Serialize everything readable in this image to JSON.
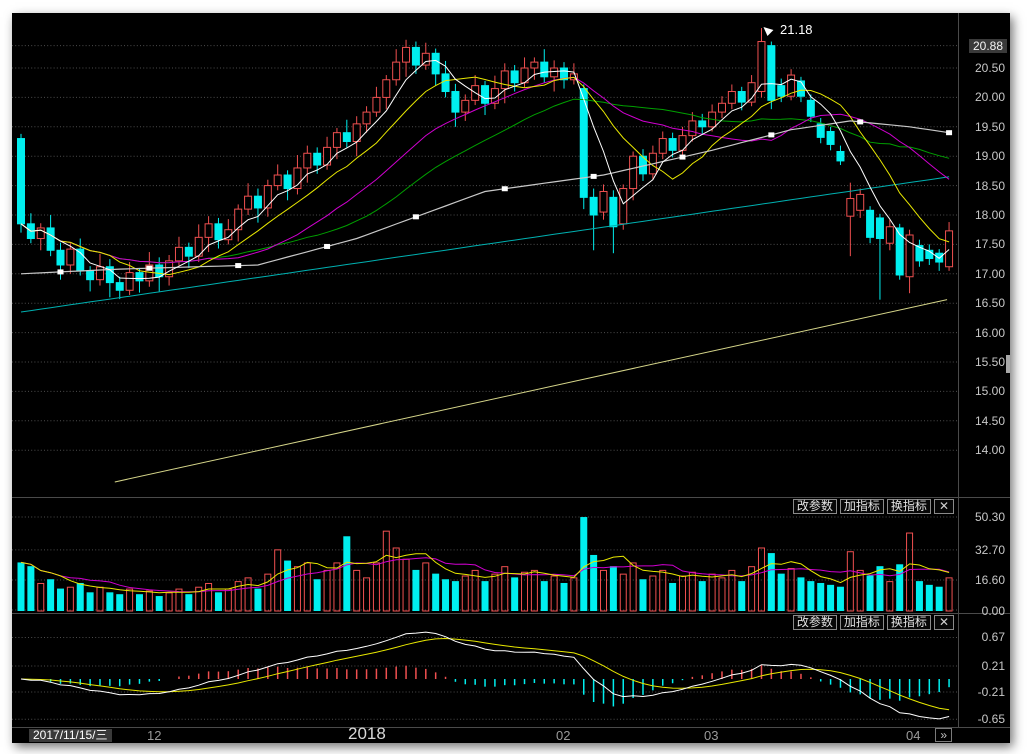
{
  "toolbar": {
    "change_params": "改参数",
    "add_indicator": "加指标",
    "switch_indicator": "换指标",
    "close": "✕"
  },
  "xaxis": {
    "labels": [
      {
        "text": "2017/11/15/三",
        "style": "box"
      },
      {
        "text": "12",
        "style": "plain"
      },
      {
        "text": "2018",
        "style": "big"
      },
      {
        "text": "02",
        "style": "plain"
      },
      {
        "text": "03",
        "style": "plain"
      },
      {
        "text": "04",
        "style": "plain"
      }
    ],
    "more_label": "»"
  },
  "main_panel": {
    "yticks": [
      {
        "label": "20.88",
        "price": 20.88,
        "boxed": true
      },
      {
        "label": "20.50",
        "price": 20.5
      },
      {
        "label": "20.00",
        "price": 20.0
      },
      {
        "label": "19.50",
        "price": 19.5
      },
      {
        "label": "19.00",
        "price": 19.0
      },
      {
        "label": "18.50",
        "price": 18.5
      },
      {
        "label": "18.00",
        "price": 18.0
      },
      {
        "label": "17.50",
        "price": 17.5
      },
      {
        "label": "17.00",
        "price": 17.0
      },
      {
        "label": "16.50",
        "price": 16.5
      },
      {
        "label": "16.00",
        "price": 16.0
      },
      {
        "label": "15.50",
        "price": 15.5
      },
      {
        "label": "15.00",
        "price": 15.0
      },
      {
        "label": "14.50",
        "price": 14.5
      },
      {
        "label": "14.00",
        "price": 14.0
      }
    ]
  },
  "volume_panel": {
    "yticks": [
      {
        "label": "50.30",
        "value": 50.3
      },
      {
        "label": "32.70",
        "value": 32.7
      },
      {
        "label": "16.60",
        "value": 16.6
      },
      {
        "label": "0.00",
        "value": 0.0
      }
    ]
  },
  "macd_panel": {
    "yticks": [
      {
        "label": "0.67",
        "value": 0.67
      },
      {
        "label": "0.21",
        "value": 0.21
      },
      {
        "label": "-0.21",
        "value": -0.21
      },
      {
        "label": "-0.65",
        "value": -0.65
      }
    ]
  },
  "colors": {
    "background": "#000000",
    "grid": "#4d4d4d",
    "up": "#f05050",
    "down": "#00efef",
    "ma_white": "#ffffff",
    "ma_yellow": "#e8e800",
    "ma_magenta": "#cf00cf",
    "ma_green": "#00a000",
    "ma_cyan": "#00b0b0",
    "cost_line": "#c8c8c8",
    "trendline": "#d6d68a",
    "axis_text": "#c8c8c8"
  },
  "chart_data": {
    "type": "candlestick+volume+macd",
    "date_start": "2017/11/15/三",
    "main_ylim": [
      13.2,
      21.43
    ],
    "volume_ylim": [
      0,
      55
    ],
    "macd_ylim": [
      -0.85,
      0.85
    ],
    "peak_annotation": {
      "index": 75,
      "price": 21.18,
      "label": "21.18"
    },
    "trendline": {
      "i1": 9.5,
      "p1": 13.46,
      "i2": 93.8,
      "p2": 16.56
    },
    "ma_periods": {
      "white": 5,
      "yellow": 10,
      "magenta": 20,
      "green": 30
    },
    "ma60_synthetic": {
      "start": 16.35,
      "end": 18.65
    },
    "cost_line_anchors": [
      [
        0,
        17.0
      ],
      [
        10,
        17.08
      ],
      [
        24,
        17.15
      ],
      [
        34,
        17.6
      ],
      [
        47,
        18.4
      ],
      [
        59,
        18.68
      ],
      [
        70,
        19.1
      ],
      [
        78,
        19.45
      ],
      [
        84,
        19.6
      ],
      [
        90,
        19.5
      ],
      [
        94,
        19.4
      ]
    ],
    "volume_ma_periods": {
      "yellow": 5,
      "magenta": 10
    },
    "candles": [
      [
        19.3,
        19.38,
        17.7,
        17.85
      ],
      [
        17.85,
        18.03,
        17.52,
        17.6
      ],
      [
        17.6,
        17.86,
        17.4,
        17.78
      ],
      [
        17.78,
        18.0,
        17.3,
        17.4
      ],
      [
        17.4,
        17.53,
        16.9,
        17.15
      ],
      [
        17.15,
        17.52,
        17.0,
        17.42
      ],
      [
        17.42,
        17.6,
        16.97,
        17.05
      ],
      [
        17.05,
        17.13,
        16.7,
        16.9
      ],
      [
        16.9,
        17.34,
        16.8,
        17.12
      ],
      [
        17.12,
        17.25,
        16.6,
        16.85
      ],
      [
        16.85,
        16.95,
        16.57,
        16.72
      ],
      [
        16.72,
        17.2,
        16.64,
        17.02
      ],
      [
        17.02,
        17.1,
        16.68,
        16.88
      ],
      [
        16.88,
        17.37,
        16.78,
        17.15
      ],
      [
        17.15,
        17.28,
        16.7,
        16.95
      ],
      [
        16.95,
        17.32,
        16.8,
        17.22
      ],
      [
        17.22,
        17.63,
        17.14,
        17.45
      ],
      [
        17.45,
        17.53,
        17.1,
        17.3
      ],
      [
        17.3,
        17.84,
        17.2,
        17.62
      ],
      [
        17.62,
        17.98,
        17.37,
        17.85
      ],
      [
        17.85,
        17.95,
        17.43,
        17.58
      ],
      [
        17.58,
        17.93,
        17.5,
        17.75
      ],
      [
        17.75,
        18.18,
        17.55,
        18.1
      ],
      [
        18.1,
        18.54,
        18.0,
        18.32
      ],
      [
        18.32,
        18.45,
        17.87,
        18.12
      ],
      [
        18.12,
        18.6,
        17.97,
        18.5
      ],
      [
        18.5,
        18.86,
        18.42,
        18.68
      ],
      [
        18.68,
        18.76,
        18.25,
        18.45
      ],
      [
        18.45,
        19.02,
        18.35,
        18.8
      ],
      [
        18.8,
        19.18,
        18.55,
        19.05
      ],
      [
        19.05,
        19.15,
        18.7,
        18.85
      ],
      [
        18.85,
        19.33,
        18.77,
        19.15
      ],
      [
        19.15,
        19.48,
        18.95,
        19.4
      ],
      [
        19.4,
        19.62,
        19.15,
        19.25
      ],
      [
        19.25,
        19.68,
        19.0,
        19.55
      ],
      [
        19.55,
        19.85,
        19.4,
        19.75
      ],
      [
        19.75,
        20.18,
        19.67,
        20.0
      ],
      [
        20.0,
        20.38,
        19.8,
        20.3
      ],
      [
        20.3,
        20.82,
        20.2,
        20.6
      ],
      [
        20.6,
        20.98,
        20.35,
        20.85
      ],
      [
        20.85,
        20.95,
        20.4,
        20.55
      ],
      [
        20.55,
        20.93,
        20.47,
        20.75
      ],
      [
        20.75,
        20.83,
        20.2,
        20.4
      ],
      [
        20.4,
        20.62,
        20.0,
        20.1
      ],
      [
        20.1,
        20.23,
        19.5,
        19.75
      ],
      [
        19.75,
        20.05,
        19.6,
        19.95
      ],
      [
        19.95,
        20.38,
        19.87,
        20.2
      ],
      [
        20.2,
        20.28,
        19.7,
        19.9
      ],
      [
        19.9,
        20.37,
        19.8,
        20.15
      ],
      [
        20.15,
        20.58,
        19.9,
        20.45
      ],
      [
        20.45,
        20.55,
        20.1,
        20.25
      ],
      [
        20.25,
        20.68,
        20.17,
        20.5
      ],
      [
        20.5,
        20.68,
        20.3,
        20.6
      ],
      [
        20.6,
        20.82,
        20.25,
        20.35
      ],
      [
        20.35,
        20.63,
        20.1,
        20.5
      ],
      [
        20.5,
        20.6,
        20.15,
        20.3
      ],
      [
        20.3,
        20.58,
        20.22,
        20.4
      ],
      [
        20.15,
        20.22,
        18.1,
        18.3
      ],
      [
        18.3,
        18.45,
        17.4,
        18.0
      ],
      [
        18.05,
        18.52,
        17.92,
        18.4
      ],
      [
        18.3,
        18.42,
        17.35,
        17.8
      ],
      [
        17.85,
        18.52,
        17.75,
        18.45
      ],
      [
        18.45,
        19.08,
        18.25,
        19.0
      ],
      [
        19.0,
        19.12,
        18.58,
        18.7
      ],
      [
        18.7,
        19.18,
        18.6,
        19.05
      ],
      [
        19.05,
        19.42,
        18.95,
        19.3
      ],
      [
        19.3,
        19.4,
        18.98,
        19.1
      ],
      [
        19.1,
        19.5,
        19.02,
        19.35
      ],
      [
        19.35,
        19.75,
        19.25,
        19.6
      ],
      [
        19.6,
        19.72,
        19.38,
        19.5
      ],
      [
        19.5,
        19.88,
        19.42,
        19.75
      ],
      [
        19.75,
        20.02,
        19.65,
        19.9
      ],
      [
        19.9,
        20.22,
        19.8,
        20.1
      ],
      [
        20.1,
        20.18,
        19.78,
        19.92
      ],
      [
        19.92,
        20.38,
        19.85,
        20.25
      ],
      [
        20.1,
        21.18,
        20.0,
        20.95
      ],
      [
        20.88,
        20.95,
        19.8,
        19.95
      ],
      [
        20.2,
        20.32,
        19.92,
        20.02
      ],
      [
        20.02,
        20.48,
        19.95,
        20.38
      ],
      [
        20.28,
        20.35,
        19.92,
        20.02
      ],
      [
        19.95,
        20.05,
        19.58,
        19.68
      ],
      [
        19.55,
        19.65,
        19.22,
        19.32
      ],
      [
        19.42,
        19.5,
        19.1,
        19.2
      ],
      [
        19.08,
        19.18,
        18.85,
        18.92
      ],
      [
        17.98,
        18.55,
        17.3,
        18.28
      ],
      [
        18.08,
        18.45,
        17.95,
        18.35
      ],
      [
        18.08,
        18.15,
        17.52,
        17.62
      ],
      [
        17.95,
        18.02,
        16.56,
        17.6
      ],
      [
        17.52,
        17.92,
        17.4,
        17.8
      ],
      [
        17.78,
        17.85,
        16.9,
        16.98
      ],
      [
        16.95,
        17.75,
        16.67,
        17.66
      ],
      [
        17.48,
        17.58,
        17.12,
        17.22
      ],
      [
        17.4,
        17.5,
        17.15,
        17.26
      ],
      [
        17.35,
        17.42,
        17.05,
        17.2
      ],
      [
        17.12,
        17.88,
        17.05,
        17.73
      ]
    ],
    "volumes": [
      26,
      24,
      15,
      17,
      12,
      13,
      15,
      10,
      13,
      10,
      9,
      12,
      9,
      11,
      8,
      10,
      12,
      9,
      13,
      15,
      10,
      12,
      16,
      18,
      12,
      20,
      33,
      27,
      24,
      26,
      17,
      22,
      26,
      40,
      22,
      18,
      26,
      43,
      34,
      28,
      22,
      26,
      20,
      17,
      16,
      19,
      22,
      16,
      20,
      24,
      18,
      21,
      22,
      16,
      19,
      15,
      18,
      50.3,
      30,
      22,
      24,
      20,
      26,
      17,
      19,
      22,
      15,
      19,
      21,
      16,
      20,
      18,
      22,
      16,
      24,
      34,
      31,
      20,
      23,
      18,
      16,
      15,
      14,
      13,
      32,
      22,
      19,
      24,
      16,
      25,
      42,
      16,
      14,
      13,
      18
    ]
  }
}
